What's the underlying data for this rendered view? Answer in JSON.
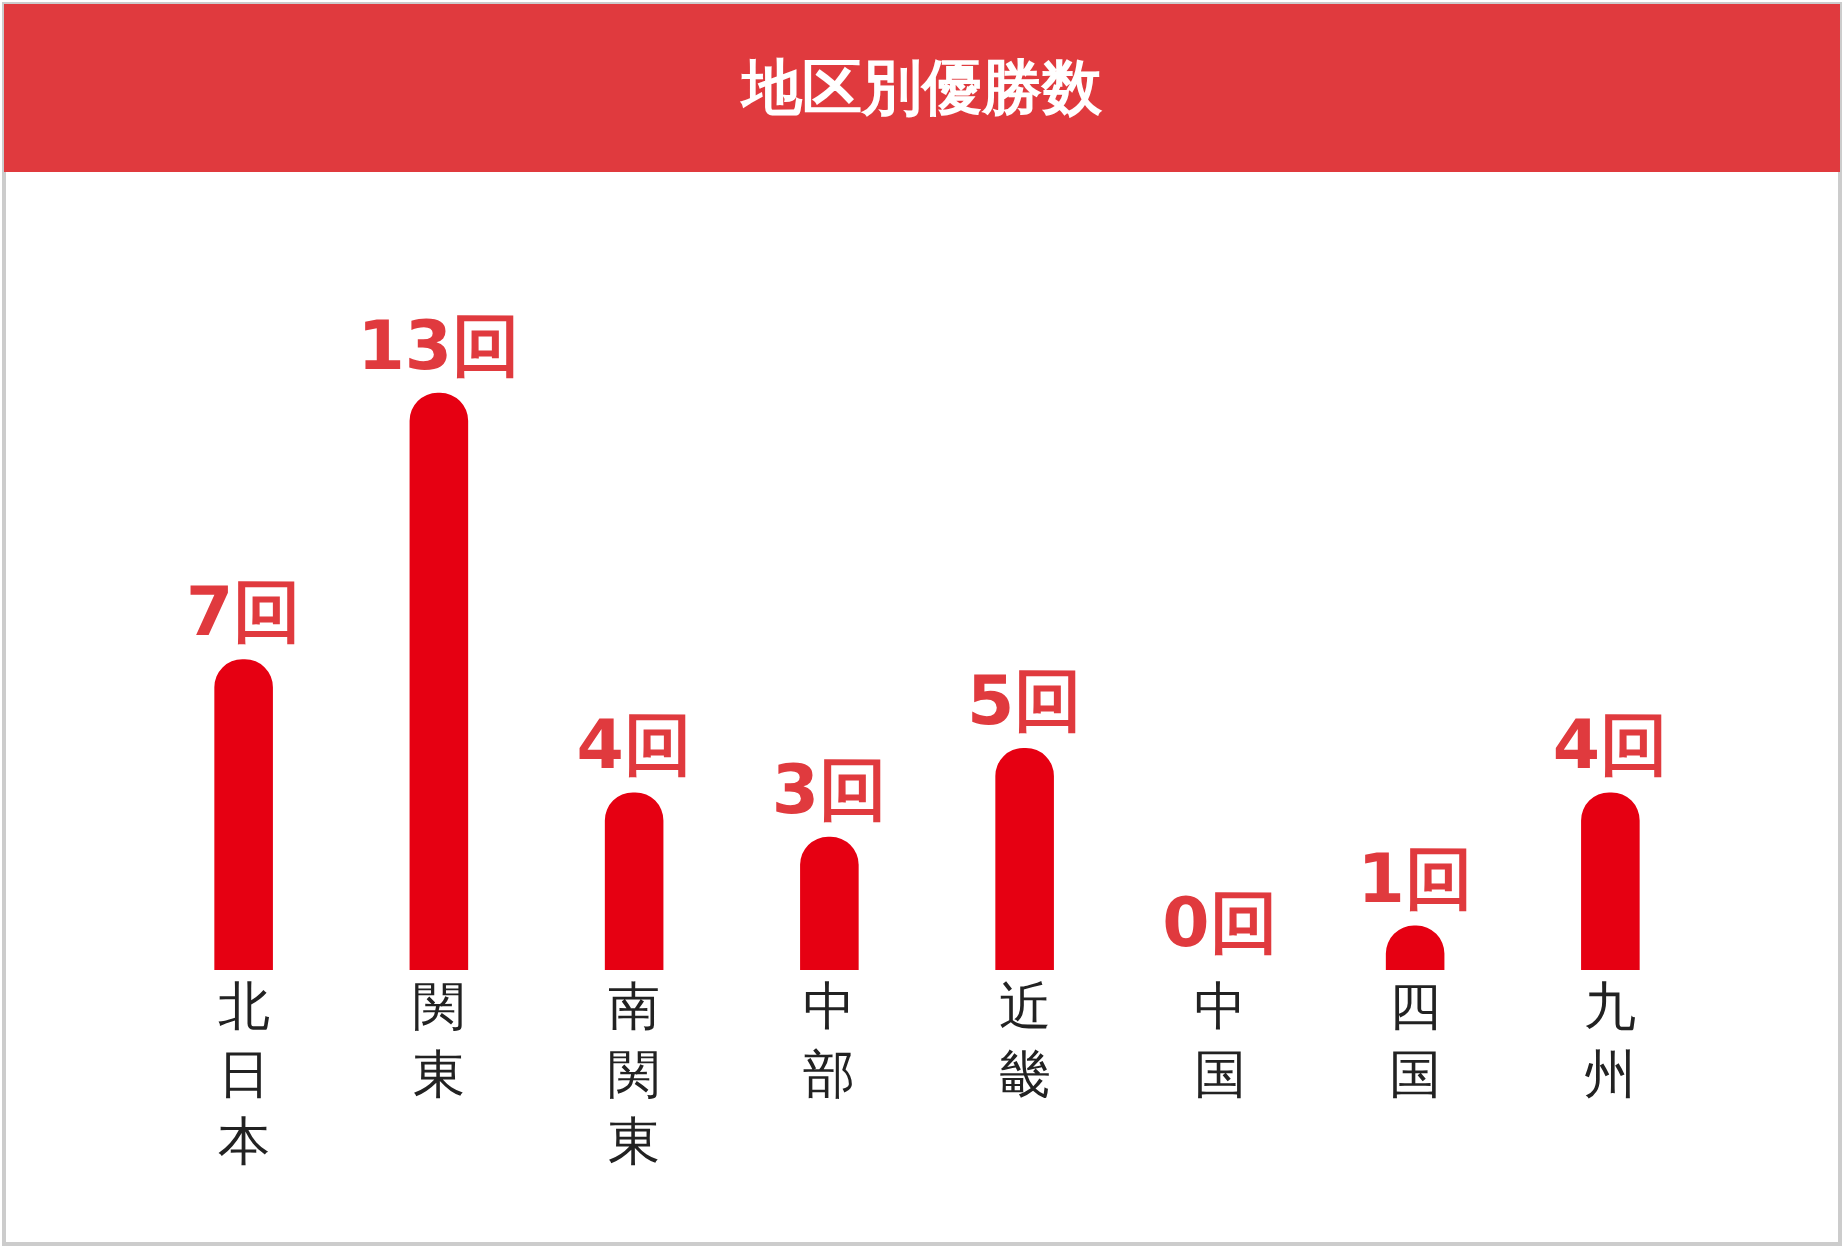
{
  "chart_data": {
    "type": "bar",
    "title": "地区別優勝数",
    "categories": [
      "北日本",
      "関東",
      "南関東",
      "中部",
      "近畿",
      "中国",
      "四国",
      "九州"
    ],
    "values": [
      7,
      13,
      4,
      3,
      5,
      0,
      1,
      4
    ],
    "value_labels": [
      "7回",
      "13回",
      "4回",
      "3回",
      "5回",
      "0回",
      "1回",
      "4回"
    ],
    "color": "#e60012"
  }
}
